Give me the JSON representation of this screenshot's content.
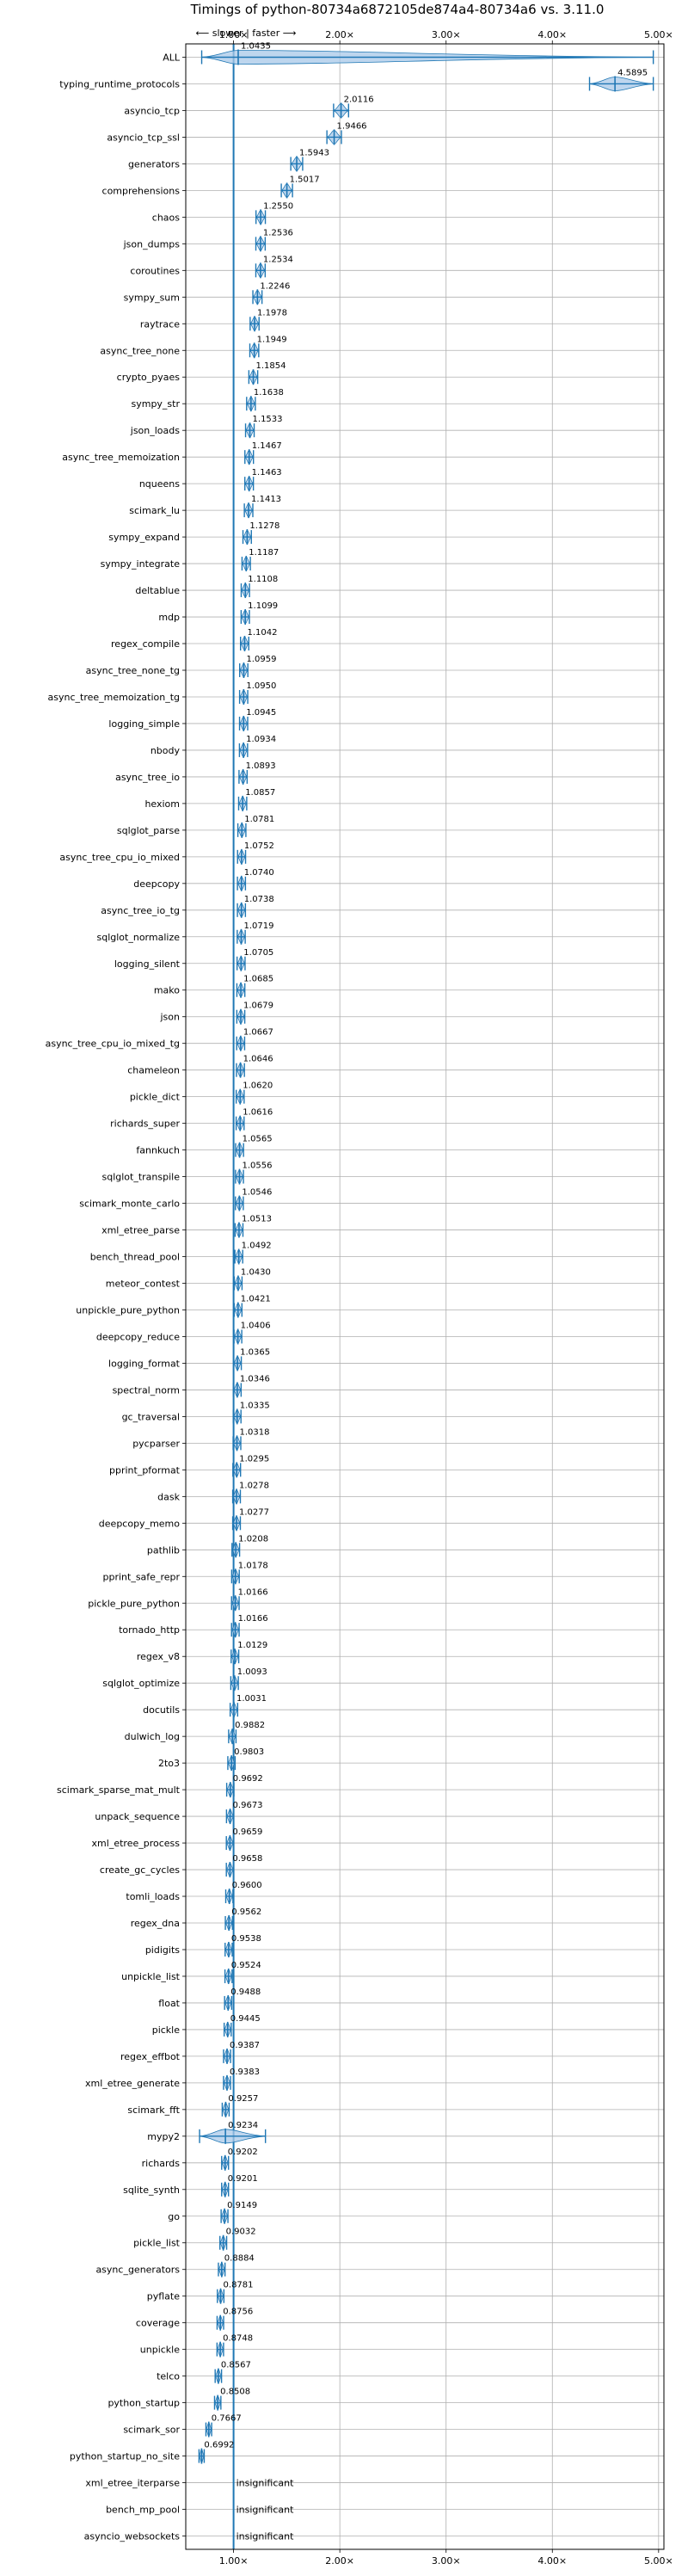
{
  "chart_data": {
    "type": "violin",
    "title": "Timings of python-80734a6872105de874a4-80734a6 vs. 3.11.0",
    "direction_label": "⟵ slower | faster ⟶",
    "xlabel": "",
    "ylabel": "",
    "xlim": [
      0.55,
      5.05
    ],
    "x_ticks": [
      1,
      2,
      3,
      4,
      5
    ],
    "x_tick_labels": [
      "1.00×",
      "2.00×",
      "3.00×",
      "4.00×",
      "5.00×"
    ],
    "reference_line": 1.0,
    "grid": true,
    "colors": {
      "violin_fill": "#a8c8e8",
      "stroke": "#1f77b4",
      "reference": "#1f77b4",
      "grid": "#b0b0b0",
      "median": "#e377c2"
    },
    "insignificant_label": "insignificant",
    "benchmarks": [
      {
        "name": "ALL",
        "value": 1.0435,
        "label": "1.0435",
        "spread_low": 0.7,
        "spread_high": 4.95
      },
      {
        "name": "typing_runtime_protocols",
        "value": 4.5895,
        "label": "4.5895",
        "spread_low": 4.35,
        "spread_high": 4.95
      },
      {
        "name": "asyncio_tcp",
        "value": 2.0116,
        "label": "2.0116"
      },
      {
        "name": "asyncio_tcp_ssl",
        "value": 1.9466,
        "label": "1.9466"
      },
      {
        "name": "generators",
        "value": 1.5943,
        "label": "1.5943"
      },
      {
        "name": "comprehensions",
        "value": 1.5017,
        "label": "1.5017"
      },
      {
        "name": "chaos",
        "value": 1.255,
        "label": "1.2550"
      },
      {
        "name": "json_dumps",
        "value": 1.2536,
        "label": "1.2536"
      },
      {
        "name": "coroutines",
        "value": 1.2534,
        "label": "1.2534"
      },
      {
        "name": "sympy_sum",
        "value": 1.2246,
        "label": "1.2246"
      },
      {
        "name": "raytrace",
        "value": 1.1978,
        "label": "1.1978"
      },
      {
        "name": "async_tree_none",
        "value": 1.1949,
        "label": "1.1949"
      },
      {
        "name": "crypto_pyaes",
        "value": 1.1854,
        "label": "1.1854"
      },
      {
        "name": "sympy_str",
        "value": 1.1638,
        "label": "1.1638"
      },
      {
        "name": "json_loads",
        "value": 1.1533,
        "label": "1.1533"
      },
      {
        "name": "async_tree_memoization",
        "value": 1.1467,
        "label": "1.1467"
      },
      {
        "name": "nqueens",
        "value": 1.1463,
        "label": "1.1463"
      },
      {
        "name": "scimark_lu",
        "value": 1.1413,
        "label": "1.1413"
      },
      {
        "name": "sympy_expand",
        "value": 1.1278,
        "label": "1.1278"
      },
      {
        "name": "sympy_integrate",
        "value": 1.1187,
        "label": "1.1187"
      },
      {
        "name": "deltablue",
        "value": 1.1108,
        "label": "1.1108"
      },
      {
        "name": "mdp",
        "value": 1.1099,
        "label": "1.1099"
      },
      {
        "name": "regex_compile",
        "value": 1.1042,
        "label": "1.1042"
      },
      {
        "name": "async_tree_none_tg",
        "value": 1.0959,
        "label": "1.0959"
      },
      {
        "name": "async_tree_memoization_tg",
        "value": 1.095,
        "label": "1.0950"
      },
      {
        "name": "logging_simple",
        "value": 1.0945,
        "label": "1.0945"
      },
      {
        "name": "nbody",
        "value": 1.0934,
        "label": "1.0934"
      },
      {
        "name": "async_tree_io",
        "value": 1.0893,
        "label": "1.0893"
      },
      {
        "name": "hexiom",
        "value": 1.0857,
        "label": "1.0857"
      },
      {
        "name": "sqlglot_parse",
        "value": 1.0781,
        "label": "1.0781"
      },
      {
        "name": "async_tree_cpu_io_mixed",
        "value": 1.0752,
        "label": "1.0752"
      },
      {
        "name": "deepcopy",
        "value": 1.074,
        "label": "1.0740"
      },
      {
        "name": "async_tree_io_tg",
        "value": 1.0738,
        "label": "1.0738"
      },
      {
        "name": "sqlglot_normalize",
        "value": 1.0719,
        "label": "1.0719"
      },
      {
        "name": "logging_silent",
        "value": 1.0705,
        "label": "1.0705"
      },
      {
        "name": "mako",
        "value": 1.0685,
        "label": "1.0685"
      },
      {
        "name": "json",
        "value": 1.0679,
        "label": "1.0679"
      },
      {
        "name": "async_tree_cpu_io_mixed_tg",
        "value": 1.0667,
        "label": "1.0667"
      },
      {
        "name": "chameleon",
        "value": 1.0646,
        "label": "1.0646"
      },
      {
        "name": "pickle_dict",
        "value": 1.062,
        "label": "1.0620"
      },
      {
        "name": "richards_super",
        "value": 1.0616,
        "label": "1.0616"
      },
      {
        "name": "fannkuch",
        "value": 1.0565,
        "label": "1.0565"
      },
      {
        "name": "sqlglot_transpile",
        "value": 1.0556,
        "label": "1.0556"
      },
      {
        "name": "scimark_monte_carlo",
        "value": 1.0546,
        "label": "1.0546"
      },
      {
        "name": "xml_etree_parse",
        "value": 1.0513,
        "label": "1.0513"
      },
      {
        "name": "bench_thread_pool",
        "value": 1.0492,
        "label": "1.0492"
      },
      {
        "name": "meteor_contest",
        "value": 1.043,
        "label": "1.0430"
      },
      {
        "name": "unpickle_pure_python",
        "value": 1.0421,
        "label": "1.0421"
      },
      {
        "name": "deepcopy_reduce",
        "value": 1.0406,
        "label": "1.0406"
      },
      {
        "name": "logging_format",
        "value": 1.0365,
        "label": "1.0365"
      },
      {
        "name": "spectral_norm",
        "value": 1.0346,
        "label": "1.0346"
      },
      {
        "name": "gc_traversal",
        "value": 1.0335,
        "label": "1.0335"
      },
      {
        "name": "pycparser",
        "value": 1.0318,
        "label": "1.0318"
      },
      {
        "name": "pprint_pformat",
        "value": 1.0295,
        "label": "1.0295"
      },
      {
        "name": "dask",
        "value": 1.0278,
        "label": "1.0278"
      },
      {
        "name": "deepcopy_memo",
        "value": 1.0277,
        "label": "1.0277"
      },
      {
        "name": "pathlib",
        "value": 1.0208,
        "label": "1.0208"
      },
      {
        "name": "pprint_safe_repr",
        "value": 1.0178,
        "label": "1.0178"
      },
      {
        "name": "pickle_pure_python",
        "value": 1.0166,
        "label": "1.0166"
      },
      {
        "name": "tornado_http",
        "value": 1.0166,
        "label": "1.0166"
      },
      {
        "name": "regex_v8",
        "value": 1.0129,
        "label": "1.0129"
      },
      {
        "name": "sqlglot_optimize",
        "value": 1.0093,
        "label": "1.0093"
      },
      {
        "name": "docutils",
        "value": 1.0031,
        "label": "1.0031"
      },
      {
        "name": "dulwich_log",
        "value": 0.9882,
        "label": "0.9882"
      },
      {
        "name": "2to3",
        "value": 0.9803,
        "label": "0.9803"
      },
      {
        "name": "scimark_sparse_mat_mult",
        "value": 0.9692,
        "label": "0.9692"
      },
      {
        "name": "unpack_sequence",
        "value": 0.9673,
        "label": "0.9673"
      },
      {
        "name": "xml_etree_process",
        "value": 0.9659,
        "label": "0.9659"
      },
      {
        "name": "create_gc_cycles",
        "value": 0.9658,
        "label": "0.9658"
      },
      {
        "name": "tomli_loads",
        "value": 0.96,
        "label": "0.9600"
      },
      {
        "name": "regex_dna",
        "value": 0.9562,
        "label": "0.9562"
      },
      {
        "name": "pidigits",
        "value": 0.9538,
        "label": "0.9538"
      },
      {
        "name": "unpickle_list",
        "value": 0.9524,
        "label": "0.9524"
      },
      {
        "name": "float",
        "value": 0.9488,
        "label": "0.9488"
      },
      {
        "name": "pickle",
        "value": 0.9445,
        "label": "0.9445"
      },
      {
        "name": "regex_effbot",
        "value": 0.9387,
        "label": "0.9387"
      },
      {
        "name": "xml_etree_generate",
        "value": 0.9383,
        "label": "0.9383"
      },
      {
        "name": "scimark_fft",
        "value": 0.9257,
        "label": "0.9257"
      },
      {
        "name": "mypy2",
        "value": 0.9234,
        "label": "0.9234",
        "spread_low": 0.68,
        "spread_high": 1.3
      },
      {
        "name": "richards",
        "value": 0.9202,
        "label": "0.9202"
      },
      {
        "name": "sqlite_synth",
        "value": 0.9201,
        "label": "0.9201"
      },
      {
        "name": "go",
        "value": 0.9149,
        "label": "0.9149"
      },
      {
        "name": "pickle_list",
        "value": 0.9032,
        "label": "0.9032"
      },
      {
        "name": "async_generators",
        "value": 0.8884,
        "label": "0.8884"
      },
      {
        "name": "pyflate",
        "value": 0.8781,
        "label": "0.8781"
      },
      {
        "name": "coverage",
        "value": 0.8756,
        "label": "0.8756"
      },
      {
        "name": "unpickle",
        "value": 0.8748,
        "label": "0.8748"
      },
      {
        "name": "telco",
        "value": 0.8567,
        "label": "0.8567"
      },
      {
        "name": "python_startup",
        "value": 0.8508,
        "label": "0.8508"
      },
      {
        "name": "scimark_sor",
        "value": 0.7667,
        "label": "0.7667"
      },
      {
        "name": "python_startup_no_site",
        "value": 0.6992,
        "label": "0.6992"
      },
      {
        "name": "xml_etree_iterparse",
        "value": null,
        "label": "insignificant"
      },
      {
        "name": "bench_mp_pool",
        "value": null,
        "label": "insignificant"
      },
      {
        "name": "asyncio_websockets",
        "value": null,
        "label": "insignificant"
      }
    ]
  }
}
